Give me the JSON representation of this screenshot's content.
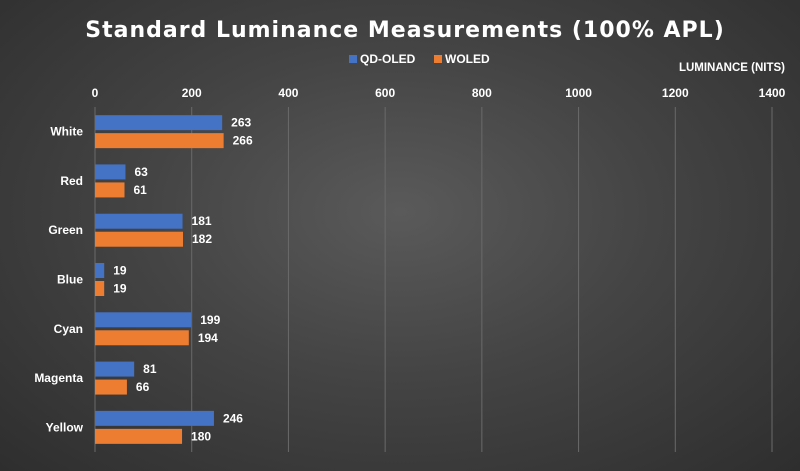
{
  "chart_data": {
    "type": "bar",
    "orientation": "horizontal",
    "title": "Standard Luminance Measurements (100% APL)",
    "xlabel": "LUMINANCE (NITS)",
    "ylabel": "",
    "categories": [
      "White",
      "Red",
      "Green",
      "Blue",
      "Cyan",
      "Magenta",
      "Yellow"
    ],
    "series": [
      {
        "name": "QD-OLED",
        "color": "#4472c4",
        "values": [
          263,
          63,
          181,
          19,
          199,
          81,
          246
        ]
      },
      {
        "name": "WOLED",
        "color": "#ed7d31",
        "values": [
          266,
          61,
          182,
          19,
          194,
          66,
          180
        ]
      }
    ],
    "xlim": [
      0,
      1400
    ],
    "xticks": [
      0,
      200,
      400,
      600,
      800,
      1000,
      1200,
      1400
    ],
    "grid": true,
    "legend_position": "top",
    "data_labels": true
  }
}
